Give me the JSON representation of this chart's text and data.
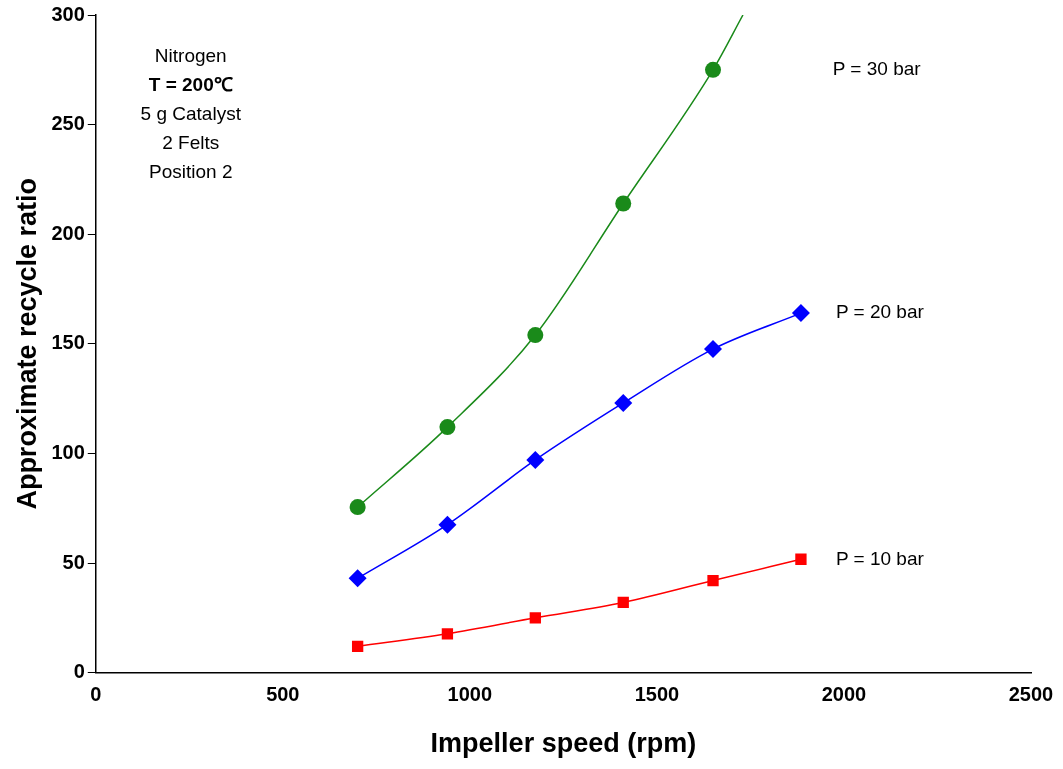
{
  "chart_data": {
    "type": "scatter",
    "xlabel": "Impeller speed (rpm)",
    "ylabel": "Approximate recycle ratio",
    "xlim": [
      0,
      2500
    ],
    "xticks": [
      0,
      500,
      1000,
      1500,
      2000,
      2500
    ],
    "ylim": [
      0,
      300
    ],
    "yticks": [
      0,
      50,
      100,
      150,
      200,
      250,
      300
    ],
    "grid": false,
    "legend": false,
    "annotations": [
      "Nitrogen",
      "T = 200℃",
      "5 g Catalyst",
      "2 Felts",
      "Position 2"
    ],
    "series": [
      {
        "name": "P = 30 bar",
        "marker": "circle",
        "color": "#1a8a1a",
        "x": [
          700,
          940,
          1175,
          1410,
          1650
        ],
        "values": [
          75.5,
          112,
          154,
          214,
          275
        ]
      },
      {
        "name": "P = 20 bar",
        "marker": "diamond",
        "color": "#0000ff",
        "x": [
          700,
          940,
          1175,
          1410,
          1650,
          1885
        ],
        "values": [
          43,
          67.5,
          97,
          123,
          147.6,
          164
        ]
      },
      {
        "name": "P = 10 bar",
        "marker": "square",
        "color": "#ff0000",
        "x": [
          700,
          940,
          1175,
          1410,
          1650,
          1885
        ],
        "values": [
          12,
          17.7,
          25,
          32,
          42,
          51.7
        ]
      },
      {
        "type": "line",
        "marker": "none",
        "color": "#1a8a1a",
        "x": [
          700,
          940,
          1175,
          1410,
          1650,
          1730
        ],
        "values": [
          75.5,
          112,
          154,
          214,
          275,
          300
        ]
      },
      {
        "type": "line",
        "marker": "none",
        "color": "#0000ff",
        "x": [
          700,
          940,
          1175,
          1410,
          1650,
          1885
        ],
        "values": [
          43,
          67.5,
          97,
          123,
          147.6,
          164
        ]
      },
      {
        "type": "line",
        "marker": "none",
        "color": "#ff0000",
        "x": [
          700,
          940,
          1175,
          1410,
          1650,
          1885
        ],
        "values": [
          12,
          17.7,
          25,
          32,
          42,
          51.7
        ]
      }
    ]
  }
}
